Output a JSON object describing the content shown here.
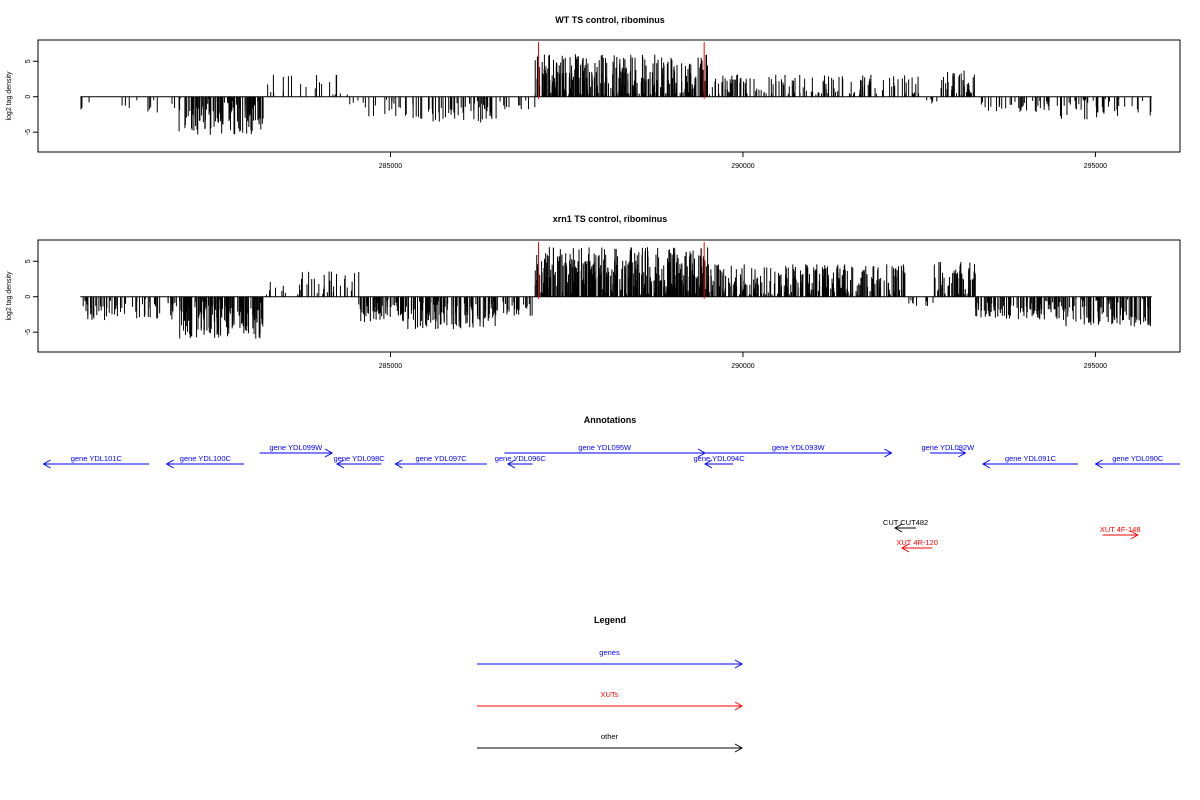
{
  "chart_data": [
    {
      "type": "bar",
      "title": "WT TS control, ribominus",
      "ylabel": "log2 tag density",
      "xlim": [
        280000,
        296200
      ],
      "ylim": [
        -7.8,
        8.0
      ],
      "yticks": [
        -5,
        0,
        5
      ],
      "xticks": [
        285000,
        290000,
        295000
      ],
      "grid": false,
      "highlight_x": [
        287100,
        289450
      ],
      "highlight_color": "#ff0000",
      "bar_color": "#000000",
      "regions": [
        {
          "x": [
            280600,
            282000
          ],
          "level": -1.7,
          "amp": 1.3,
          "n": 40,
          "p": 0.35
        },
        {
          "x": [
            282000,
            283200
          ],
          "level": -2.8,
          "amp": 2.6,
          "n": 120,
          "p": 0.95
        },
        {
          "x": [
            283200,
            283700
          ],
          "level": 1.5,
          "amp": 1.6,
          "n": 8,
          "p": 1.0
        },
        {
          "x": [
            283700,
            284400
          ],
          "level": 1.3,
          "amp": 1.8,
          "n": 14,
          "p": 1.0
        },
        {
          "x": [
            284400,
            285200
          ],
          "level": -1.5,
          "amp": 1.3,
          "n": 20,
          "p": 0.9
        },
        {
          "x": [
            285200,
            286500
          ],
          "level": -2.1,
          "amp": 1.6,
          "n": 70,
          "p": 0.9
        },
        {
          "x": [
            286500,
            287050
          ],
          "level": -1.4,
          "amp": 0.9,
          "n": 12,
          "p": 0.9
        },
        {
          "x": [
            287050,
            289500
          ],
          "level": 2.8,
          "amp": 3.2,
          "n": 330,
          "p": 1.0
        },
        {
          "x": [
            289500,
            292500
          ],
          "level": 1.4,
          "amp": 1.8,
          "n": 150,
          "p": 0.85
        },
        {
          "x": [
            292500,
            292800
          ],
          "level": -0.6,
          "amp": 0.5,
          "n": 6,
          "p": 0.8
        },
        {
          "x": [
            292800,
            293300
          ],
          "level": 1.9,
          "amp": 1.8,
          "n": 35,
          "p": 1.0
        },
        {
          "x": [
            293300,
            294400
          ],
          "level": -1.2,
          "amp": 1.0,
          "n": 45,
          "p": 0.8
        },
        {
          "x": [
            294400,
            295800
          ],
          "level": -1.6,
          "amp": 1.6,
          "n": 50,
          "p": 0.85
        }
      ]
    },
    {
      "type": "bar",
      "title": "xrn1 TS control, ribominus",
      "ylabel": "log2 tag density",
      "xlim": [
        280000,
        296200
      ],
      "ylim": [
        -7.8,
        8.0
      ],
      "yticks": [
        -5,
        0,
        5
      ],
      "xticks": [
        285000,
        290000,
        295000
      ],
      "grid": false,
      "highlight_x": [
        287100,
        289450
      ],
      "highlight_color": "#ff0000",
      "bar_color": "#000000",
      "regions": [
        {
          "x": [
            280600,
            282000
          ],
          "level": -1.8,
          "amp": 1.5,
          "n": 70,
          "p": 0.95
        },
        {
          "x": [
            282000,
            283200
          ],
          "level": -3.2,
          "amp": 2.8,
          "n": 150,
          "p": 1.0
        },
        {
          "x": [
            283200,
            283700
          ],
          "level": 0.9,
          "amp": 1.2,
          "n": 10,
          "p": 1.0
        },
        {
          "x": [
            283700,
            284550
          ],
          "level": 1.6,
          "amp": 2.0,
          "n": 30,
          "p": 1.0
        },
        {
          "x": [
            284550,
            285200
          ],
          "level": -2.0,
          "amp": 1.6,
          "n": 60,
          "p": 0.95
        },
        {
          "x": [
            285200,
            286500
          ],
          "level": -2.6,
          "amp": 2.0,
          "n": 120,
          "p": 0.95
        },
        {
          "x": [
            286500,
            287050
          ],
          "level": -1.6,
          "amp": 1.1,
          "n": 30,
          "p": 0.95
        },
        {
          "x": [
            287050,
            289500
          ],
          "level": 3.4,
          "amp": 3.6,
          "n": 380,
          "p": 1.0
        },
        {
          "x": [
            289500,
            292300
          ],
          "level": 2.2,
          "amp": 2.4,
          "n": 280,
          "p": 1.0
        },
        {
          "x": [
            292300,
            292700
          ],
          "level": -0.7,
          "amp": 0.7,
          "n": 10,
          "p": 0.85
        },
        {
          "x": [
            292700,
            293300
          ],
          "level": 2.4,
          "amp": 2.6,
          "n": 60,
          "p": 1.0
        },
        {
          "x": [
            293300,
            294500
          ],
          "level": -1.8,
          "amp": 1.4,
          "n": 110,
          "p": 0.95
        },
        {
          "x": [
            294500,
            295800
          ],
          "level": -2.1,
          "amp": 2.1,
          "n": 120,
          "p": 0.95
        }
      ]
    }
  ],
  "annotations": {
    "title": "Annotations",
    "xlim": [
      280000,
      296200
    ],
    "features": [
      {
        "label": "gene YDL101C",
        "start": 280050,
        "end": 281550,
        "strand": "-",
        "row": 1,
        "color": "#0000ff"
      },
      {
        "label": "gene YDL100C",
        "start": 281800,
        "end": 282900,
        "strand": "-",
        "row": 1,
        "color": "#0000ff"
      },
      {
        "label": "gene YDL099W",
        "start": 283120,
        "end": 284150,
        "strand": "+",
        "row": 0,
        "color": "#0000ff"
      },
      {
        "label": "gene YDL098C",
        "start": 284220,
        "end": 284850,
        "strand": "-",
        "row": 1,
        "color": "#0000ff"
      },
      {
        "label": "gene YDL097C",
        "start": 285050,
        "end": 286350,
        "strand": "-",
        "row": 1,
        "color": "#0000ff"
      },
      {
        "label": "gene YDL096C",
        "start": 286650,
        "end": 287000,
        "strand": "-",
        "row": 1,
        "color": "#0000ff"
      },
      {
        "label": "gene YDL095W",
        "start": 286600,
        "end": 289450,
        "strand": "+",
        "row": 0,
        "color": "#0000ff"
      },
      {
        "label": "gene YDL094C",
        "start": 289450,
        "end": 289850,
        "strand": "-",
        "row": 1,
        "color": "#0000ff"
      },
      {
        "label": "gene YDL093W",
        "start": 289450,
        "end": 292100,
        "strand": "+",
        "row": 0,
        "color": "#0000ff"
      },
      {
        "label": "gene YDL092W",
        "start": 292650,
        "end": 293150,
        "strand": "+",
        "row": 0,
        "color": "#0000ff"
      },
      {
        "label": "gene YDL091C",
        "start": 293400,
        "end": 294750,
        "strand": "-",
        "row": 1,
        "color": "#0000ff"
      },
      {
        "label": "gene YDL090C",
        "start": 295000,
        "end": 296200,
        "strand": "-",
        "row": 1,
        "color": "#0000ff"
      },
      {
        "label": "CUT CUT482",
        "start": 292150,
        "end": 292450,
        "strand": "-",
        "row": 2,
        "color": "#000000"
      },
      {
        "label": "XUT 4R-120",
        "start": 292250,
        "end": 292680,
        "strand": "-",
        "row": 4,
        "color": "#ff0000"
      },
      {
        "label": "XUT 4F-148",
        "start": 295100,
        "end": 295600,
        "strand": "+",
        "row": 3,
        "color": "#ff0000"
      }
    ]
  },
  "legend": {
    "title": "Legend",
    "items": [
      {
        "label": "genes",
        "color": "#0000ff"
      },
      {
        "label": "XUTs",
        "color": "#ff0000"
      },
      {
        "label": "other",
        "color": "#000000"
      }
    ]
  }
}
